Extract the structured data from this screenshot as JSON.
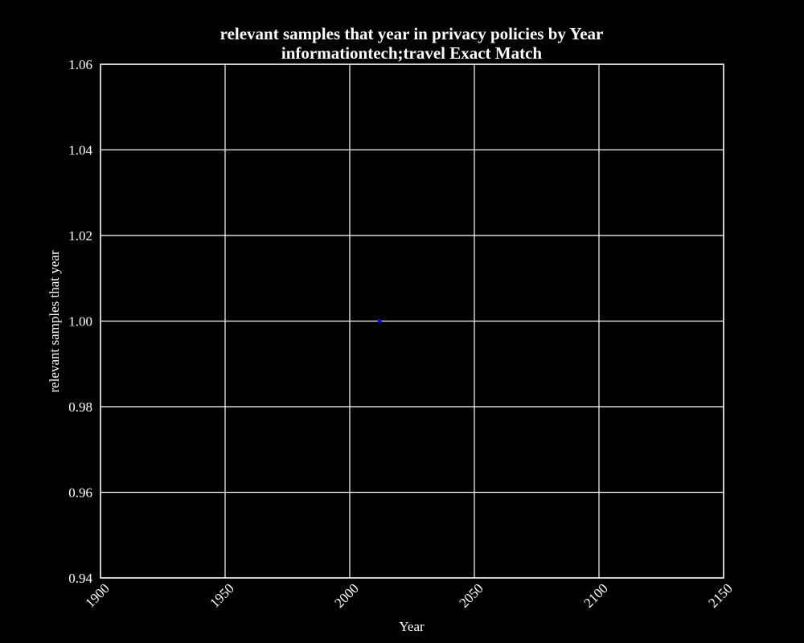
{
  "chart_data": {
    "type": "scatter",
    "title": "relevant samples that year in privacy policies by Year",
    "subtitle": "informationtech;travel Exact Match",
    "xlabel": "Year",
    "ylabel": "relevant samples that year",
    "xlim": [
      1900,
      2150
    ],
    "ylim": [
      0.94,
      1.06
    ],
    "xticks": [
      1900,
      1950,
      2000,
      2050,
      2100,
      2150
    ],
    "xtick_labels": [
      "1900",
      "1950",
      "2000",
      "2050",
      "2100",
      "2150"
    ],
    "yticks": [
      0.94,
      0.96,
      0.98,
      1.0,
      1.02,
      1.04,
      1.06
    ],
    "ytick_labels": [
      "0.94",
      "0.96",
      "0.98",
      "1.00",
      "1.02",
      "1.04",
      "1.06"
    ],
    "grid": true,
    "series": [
      {
        "x": [
          2012
        ],
        "y": [
          1.0
        ]
      }
    ],
    "colors": {
      "background": "#000000",
      "plot_background": "#000000",
      "grid": "#ffffff",
      "frame": "#ffffff",
      "text": "#ffffff",
      "point": "#0000ff"
    }
  }
}
